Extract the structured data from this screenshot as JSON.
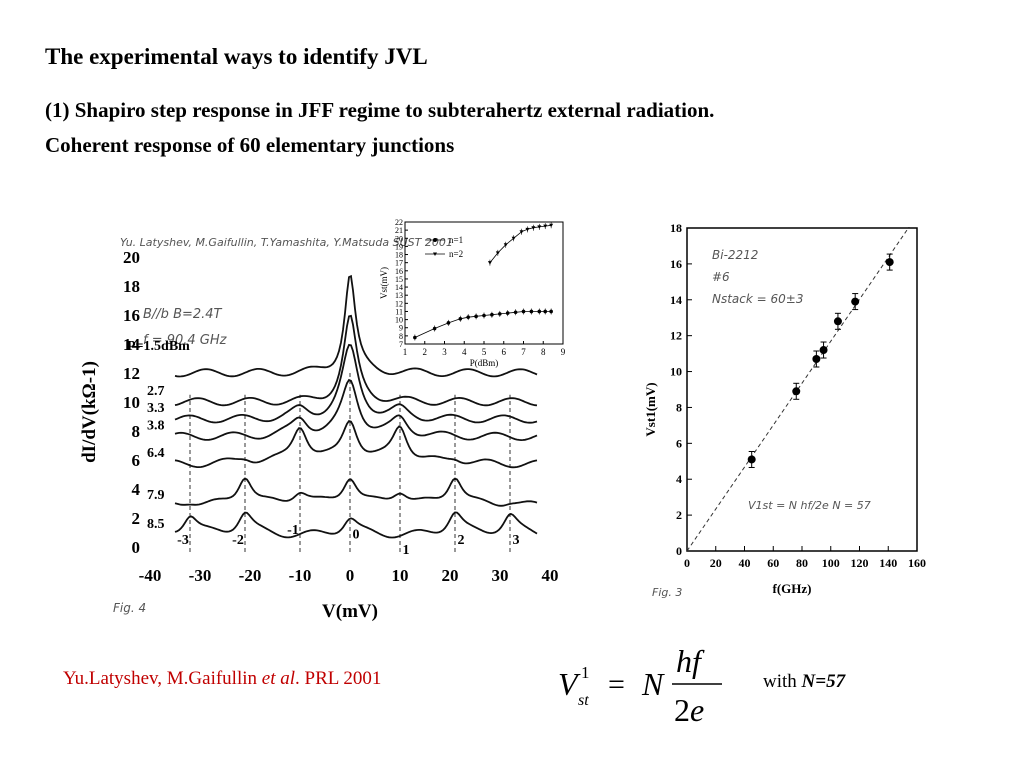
{
  "title": "The experimental ways to identify JVL",
  "subtitle_line1": "(1) Shapiro step response in JFF regime to subterahertz external radiation.",
  "subtitle_line2": "Coherent response of 60 elementary junctions",
  "citation": {
    "authors": "Yu.Latyshev, M.Gaifullin ",
    "etal": "et al",
    "journal": ". PRL 2001"
  },
  "formula_note": {
    "prefix": "with ",
    "value": "N=57"
  },
  "chart_data": [
    {
      "type": "line",
      "xlabel": "V(mV)",
      "ylabel": "dI/dV(kΩ-1)",
      "xlim": [
        -40,
        40
      ],
      "ylim": [
        0,
        20
      ],
      "x_ticks": [
        "-40",
        "-30",
        "-20",
        "-10",
        "0",
        "10",
        "20",
        "30",
        "40"
      ],
      "y_ticks": [
        "0",
        "2",
        "4",
        "6",
        "8",
        "10",
        "12",
        "14",
        "16",
        "18",
        "20"
      ],
      "header_note": "Yu. Latyshev, M.Gaifullin, T.Yamashita, Y.Matsuda SUST 2001",
      "conditions": [
        "B//b   B=2.4T",
        "f = 90.4 GHz"
      ],
      "power_label": "P=1.5dBm",
      "series": [
        {
          "name": "P=1.5dBm",
          "offset": 12.0,
          "peaks": [
            [
              0,
              6.8,
              1.3
            ]
          ]
        },
        {
          "name": "2.7",
          "offset": 10.0,
          "peaks": [
            [
              0,
              5.8,
              1.6
            ]
          ]
        },
        {
          "name": "3.3",
          "offset": 8.8,
          "peaks": [
            [
              0,
              4.9,
              2.0
            ],
            [
              -10,
              0.6,
              2.0
            ],
            [
              10,
              0.6,
              2.0
            ]
          ]
        },
        {
          "name": "3.8",
          "offset": 7.6,
          "peaks": [
            [
              0,
              3.8,
              2.0
            ],
            [
              -10,
              1.2,
              2.0
            ],
            [
              10,
              1.2,
              2.0
            ]
          ]
        },
        {
          "name": "6.4",
          "offset": 5.7,
          "peaks": [
            [
              0,
              3.0,
              1.9
            ],
            [
              -10,
              2.6,
              1.9
            ],
            [
              10,
              2.6,
              1.9
            ],
            [
              -21,
              0.4,
              2.0
            ],
            [
              21,
              0.4,
              2.0
            ]
          ]
        },
        {
          "name": "7.9",
          "offset": 2.8,
          "peaks": [
            [
              0,
              2.0,
              1.8
            ],
            [
              -10,
              1.0,
              2.0
            ],
            [
              10,
              1.0,
              2.0
            ],
            [
              -21,
              2.1,
              1.8
            ],
            [
              21,
              2.1,
              1.8
            ],
            [
              -32,
              0.3,
              2.0
            ],
            [
              32,
              0.3,
              2.0
            ]
          ]
        },
        {
          "name": "8.5",
          "offset": 0.8,
          "peaks": [
            [
              0,
              1.2,
              1.8
            ],
            [
              -21,
              1.6,
              1.8
            ],
            [
              21,
              1.6,
              1.8
            ],
            [
              -32,
              1.4,
              1.8
            ],
            [
              32,
              1.4,
              1.8
            ]
          ]
        }
      ],
      "step_markers": [
        -32,
        -21,
        -10,
        0,
        10,
        21,
        32
      ],
      "step_labels": [
        "-3",
        "-2",
        "-1",
        "0",
        "1",
        "2",
        "3"
      ],
      "footer_note": "Fig. 4"
    },
    {
      "type": "scatter",
      "xlabel": "P(dBm)",
      "ylabel": "Vst(mV)",
      "xlim": [
        1,
        9
      ],
      "ylim": [
        7,
        22
      ],
      "x_ticks": [
        "1",
        "2",
        "3",
        "4",
        "5",
        "6",
        "7",
        "8",
        "9"
      ],
      "y_ticks": [
        "7",
        "8",
        "9",
        "10",
        "11",
        "12",
        "13",
        "14",
        "15",
        "16",
        "17",
        "18",
        "19",
        "20",
        "21",
        "22"
      ],
      "series": [
        {
          "name": "n=1",
          "marker": "circle",
          "x": [
            1.5,
            2.5,
            3.2,
            3.8,
            4.2,
            4.6,
            5.0,
            5.4,
            5.8,
            6.2,
            6.6,
            7.0,
            7.4,
            7.8,
            8.1,
            8.4
          ],
          "y": [
            7.8,
            8.9,
            9.6,
            10.1,
            10.3,
            10.4,
            10.5,
            10.6,
            10.7,
            10.8,
            10.9,
            11.0,
            11.0,
            11.0,
            11.0,
            11.0
          ]
        },
        {
          "name": "n=2",
          "marker": "triangle",
          "x": [
            5.3,
            5.7,
            6.1,
            6.5,
            6.9,
            7.2,
            7.5,
            7.8,
            8.1,
            8.4
          ],
          "y": [
            17.0,
            18.2,
            19.2,
            20.0,
            20.8,
            21.1,
            21.3,
            21.4,
            21.5,
            21.6
          ]
        }
      ]
    },
    {
      "type": "scatter",
      "xlabel": "f(GHz)",
      "ylabel": "Vst1(mV)",
      "xlim": [
        0,
        160
      ],
      "ylim": [
        0,
        18
      ],
      "x_ticks": [
        "0",
        "20",
        "40",
        "60",
        "80",
        "100",
        "120",
        "140",
        "160"
      ],
      "y_ticks": [
        "0",
        "2",
        "4",
        "6",
        "8",
        "10",
        "12",
        "14",
        "16",
        "18"
      ],
      "x": [
        45,
        76,
        90,
        95,
        105,
        117,
        141
      ],
      "y": [
        5.1,
        8.9,
        10.7,
        11.2,
        12.8,
        13.9,
        16.1
      ],
      "fit_line": {
        "x": [
          0,
          160
        ],
        "y": [
          0,
          18.7
        ]
      },
      "notes": [
        "Bi-2212",
        "#6",
        "Nstack = 60±3"
      ],
      "formula_note": "V1st = N hf/2e    N = 57",
      "footer_note": "Fig. 3"
    }
  ]
}
